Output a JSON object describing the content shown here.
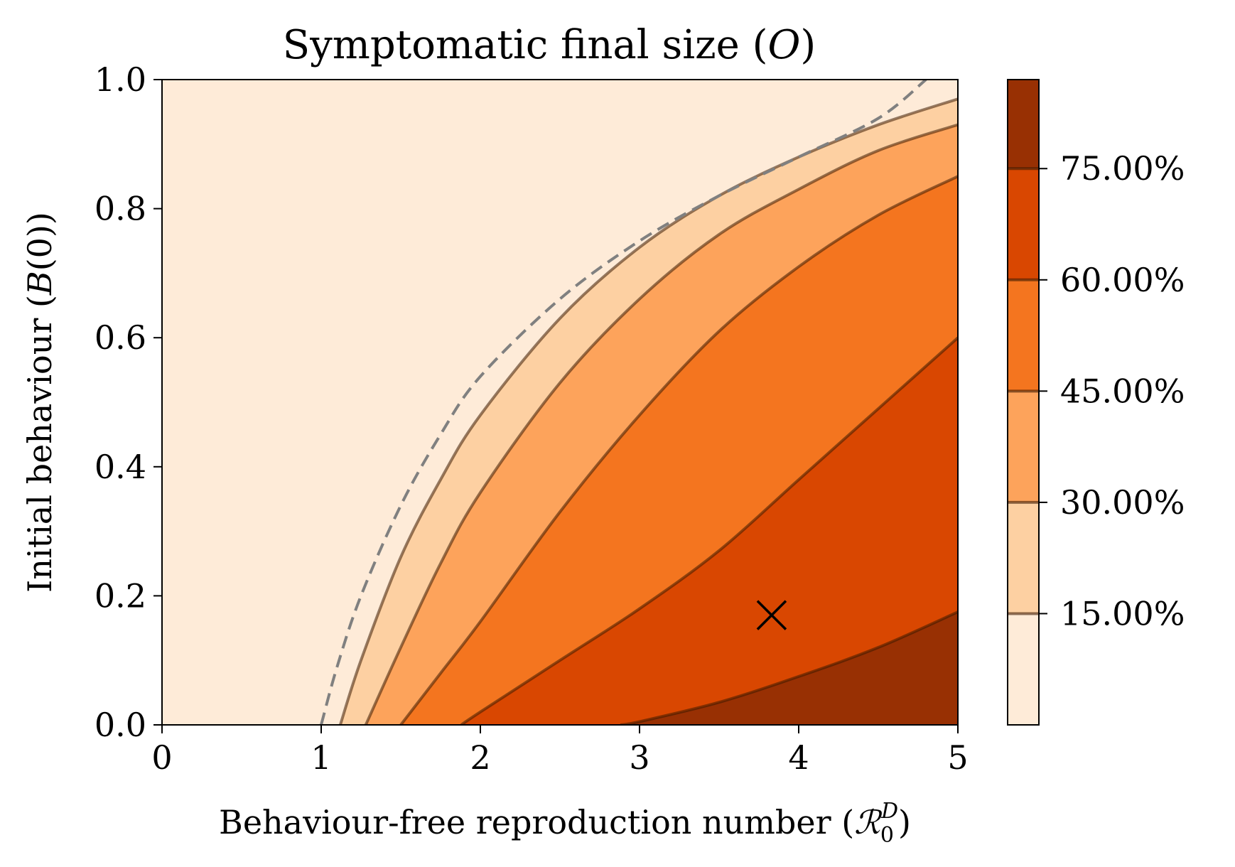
{
  "chart_data": {
    "type": "contour",
    "title": "Symptomatic final size (O)",
    "xlabel": "Behaviour-free reproduction number (R0^D)",
    "ylabel": "Initial behaviour (B(0))",
    "xlim": [
      0,
      5
    ],
    "ylim": [
      0,
      1
    ],
    "x_ticks": [
      "0",
      "1",
      "2",
      "3",
      "4",
      "5"
    ],
    "y_ticks": [
      "0.0",
      "0.2",
      "0.4",
      "0.6",
      "0.8",
      "1.0"
    ],
    "title_parts": {
      "text": "Symptomatic final size (",
      "var": "O",
      "close": ")"
    },
    "xlabel_parts": {
      "text": "Behaviour-free reproduction number (",
      "var": "ℛ",
      "sub": "0",
      "sup": "D",
      "close": ")"
    },
    "ylabel_parts": {
      "text": "Initial behaviour (",
      "var": "B",
      "arg": "(0))"
    },
    "colorbar": {
      "ticks": [
        {
          "label": "15.00%",
          "level": 0.15
        },
        {
          "label": "30.00%",
          "level": 0.3
        },
        {
          "label": "45.00%",
          "level": 0.45
        },
        {
          "label": "60.00%",
          "level": 0.6
        },
        {
          "label": "75.00%",
          "level": 0.75
        }
      ],
      "range": [
        0.0,
        0.87
      ]
    },
    "bands": [
      {
        "range": "0-15%",
        "color": "#feebd8"
      },
      {
        "range": "15-30%",
        "color": "#fdd0a2"
      },
      {
        "range": "30-45%",
        "color": "#fda35b"
      },
      {
        "range": "45-60%",
        "color": "#f4751f"
      },
      {
        "range": "60-75%",
        "color": "#d94701"
      },
      {
        "range": "75%+",
        "color": "#983003"
      }
    ],
    "threshold_line": {
      "style": "dashed",
      "color": "#808080",
      "points": [
        [
          1.0,
          0.0
        ],
        [
          1.1,
          0.09
        ],
        [
          1.25,
          0.2
        ],
        [
          1.5,
          0.34
        ],
        [
          1.75,
          0.45
        ],
        [
          2.0,
          0.54
        ],
        [
          2.5,
          0.66
        ],
        [
          3.0,
          0.75
        ],
        [
          3.5,
          0.82
        ],
        [
          4.0,
          0.88
        ],
        [
          4.5,
          0.94
        ],
        [
          4.8,
          1.0
        ]
      ]
    },
    "contours": [
      {
        "level": 0.15,
        "points": [
          [
            1.12,
            0.0
          ],
          [
            1.25,
            0.1
          ],
          [
            1.5,
            0.26
          ],
          [
            1.75,
            0.38
          ],
          [
            2.0,
            0.48
          ],
          [
            2.5,
            0.63
          ],
          [
            3.0,
            0.74
          ],
          [
            3.5,
            0.82
          ],
          [
            4.0,
            0.88
          ],
          [
            4.5,
            0.93
          ],
          [
            5.0,
            0.97
          ]
        ]
      },
      {
        "level": 0.3,
        "points": [
          [
            1.28,
            0.0
          ],
          [
            1.5,
            0.12
          ],
          [
            1.75,
            0.25
          ],
          [
            2.0,
            0.36
          ],
          [
            2.5,
            0.53
          ],
          [
            3.0,
            0.66
          ],
          [
            3.5,
            0.76
          ],
          [
            4.0,
            0.83
          ],
          [
            4.5,
            0.89
          ],
          [
            5.0,
            0.93
          ]
        ]
      },
      {
        "level": 0.45,
        "points": [
          [
            1.5,
            0.0
          ],
          [
            1.75,
            0.08
          ],
          [
            2.0,
            0.16
          ],
          [
            2.5,
            0.33
          ],
          [
            3.0,
            0.48
          ],
          [
            3.5,
            0.61
          ],
          [
            4.0,
            0.71
          ],
          [
            4.5,
            0.79
          ],
          [
            5.0,
            0.85
          ]
        ]
      },
      {
        "level": 0.6,
        "points": [
          [
            1.88,
            0.0
          ],
          [
            2.0,
            0.02
          ],
          [
            2.5,
            0.1
          ],
          [
            3.0,
            0.18
          ],
          [
            3.5,
            0.27
          ],
          [
            4.0,
            0.38
          ],
          [
            4.5,
            0.49
          ],
          [
            5.0,
            0.6
          ]
        ]
      },
      {
        "level": 0.75,
        "points": [
          [
            2.88,
            0.0
          ],
          [
            3.0,
            0.005
          ],
          [
            3.5,
            0.035
          ],
          [
            4.0,
            0.075
          ],
          [
            4.5,
            0.12
          ],
          [
            5.0,
            0.175
          ]
        ]
      }
    ],
    "marker": {
      "x": 3.83,
      "y": 0.17,
      "symbol": "x",
      "color": "#000000"
    }
  }
}
